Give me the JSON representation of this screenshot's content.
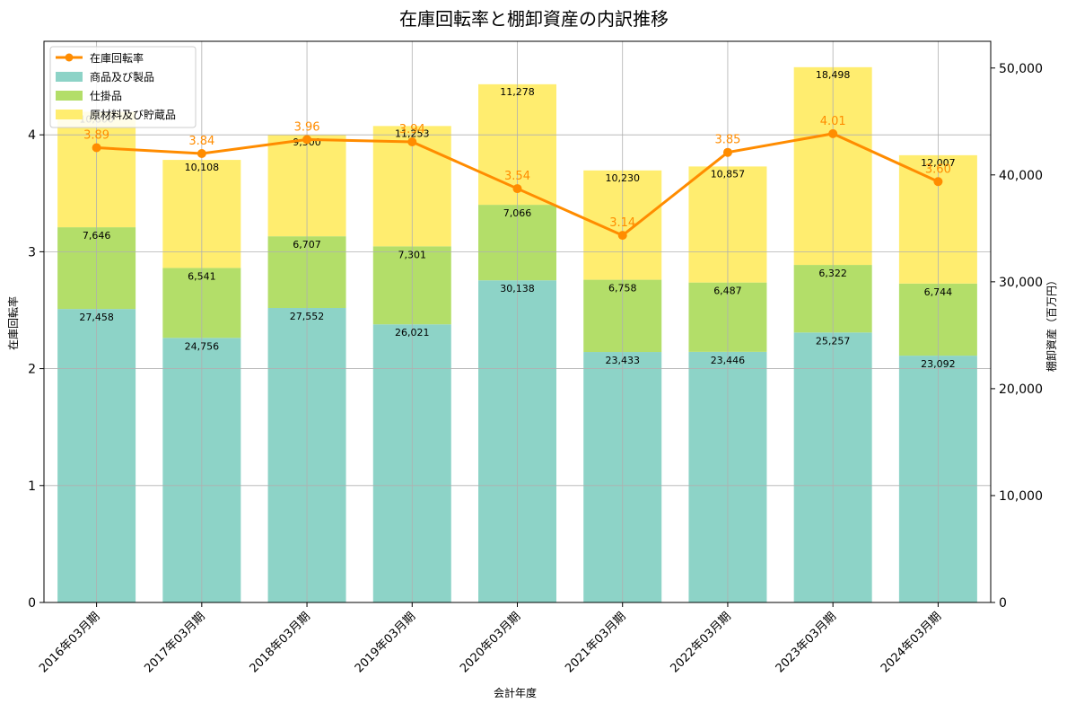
{
  "chart_data": {
    "type": "bar",
    "title": "在庫回転率と棚卸資産の内訳推移",
    "xlabel": "会計年度",
    "ylabel_left": "在庫回転率",
    "ylabel_right": "棚卸資産（百万円）",
    "categories": [
      "2016年03月期",
      "2017年03月期",
      "2018年03月期",
      "2019年03月期",
      "2020年03月期",
      "2021年03月期",
      "2022年03月期",
      "2023年03月期",
      "2024年03月期"
    ],
    "bar_series": [
      {
        "name": "商品及び製品",
        "color": "#8dd3c7",
        "values": [
          27458,
          24756,
          27552,
          26021,
          30138,
          23433,
          23446,
          25257,
          23092
        ]
      },
      {
        "name": "仕掛品",
        "color": "#b3de69",
        "values": [
          7646,
          6541,
          6707,
          7301,
          7066,
          6758,
          6487,
          6322,
          6744
        ]
      },
      {
        "name": "原材料及び貯蔵品",
        "color": "#ffed6f",
        "values": [
          10800,
          10108,
          9500,
          11253,
          11278,
          10230,
          10857,
          18498,
          12007
        ]
      }
    ],
    "bar_labels": [
      [
        "27,458",
        "24,756",
        "27,552",
        "26,021",
        "30,138",
        "23,433",
        "23,446",
        "25,257",
        "23,092"
      ],
      [
        "7,646",
        "6,541",
        "6,707",
        "7,301",
        "7,066",
        "6,758",
        "6,487",
        "6,322",
        "6,744"
      ],
      [
        "10,800",
        "10,108",
        "9,500",
        "11,253",
        "11,278",
        "10,230",
        "10,857",
        "18,498",
        "12,007"
      ]
    ],
    "line_series": {
      "name": "在庫回転率",
      "color": "#ff8c00",
      "values": [
        3.89,
        3.84,
        3.96,
        3.94,
        3.54,
        3.14,
        3.85,
        4.01,
        3.6
      ],
      "labels": [
        "3.89",
        "3.84",
        "3.96",
        "3.94",
        "3.54",
        "3.14",
        "3.85",
        "4.01",
        "3.60"
      ]
    },
    "ylim_left": [
      0,
      4.8
    ],
    "ylim_right": [
      0,
      52500
    ],
    "left_ticks": {
      "values": [
        0,
        1,
        2,
        3,
        4
      ],
      "labels": [
        "0",
        "1",
        "2",
        "3",
        "4"
      ]
    },
    "right_ticks": {
      "values": [
        0,
        10000,
        20000,
        30000,
        40000,
        50000
      ],
      "labels": [
        "0",
        "10,000",
        "20,000",
        "30,000",
        "40,000",
        "50,000"
      ]
    },
    "grid": true,
    "legend_position": "top-left"
  }
}
